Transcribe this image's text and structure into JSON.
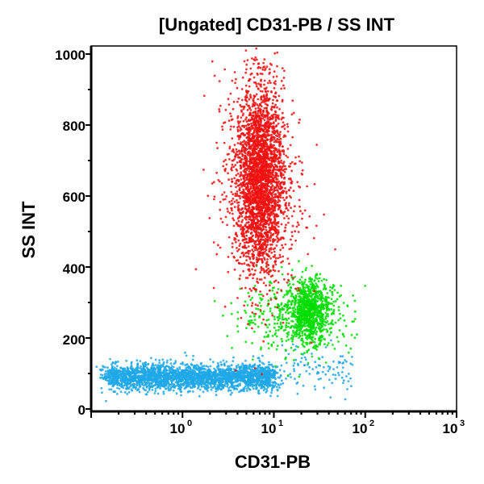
{
  "chart_data": {
    "type": "scatter",
    "title": "[Ungated] CD31-PB / SS INT",
    "xlabel": "CD31-PB",
    "ylabel": "SS INT",
    "xscale": "log",
    "xlim": [
      0.1,
      1000
    ],
    "ylim": [
      0,
      1020
    ],
    "x_ticks": [
      {
        "base": "10",
        "exp": "0",
        "value": 1
      },
      {
        "base": "10",
        "exp": "1",
        "value": 10
      },
      {
        "base": "10",
        "exp": "2",
        "value": 100
      },
      {
        "base": "10",
        "exp": "3",
        "value": 1000
      }
    ],
    "y_ticks": [
      {
        "label": "0",
        "value": 0
      },
      {
        "label": "200",
        "value": 200
      },
      {
        "label": "400",
        "value": 400
      },
      {
        "label": "600",
        "value": 600
      },
      {
        "label": "800",
        "value": 800
      },
      {
        "label": "1000",
        "value": 1000
      }
    ],
    "grid": false,
    "populations": [
      {
        "color": "#1ea8e8",
        "x_range": [
          0.15,
          10
        ],
        "y_center": 90,
        "y_spread": 18,
        "count": 2600
      },
      {
        "color": "#1ea8e8",
        "x_range": [
          8,
          70
        ],
        "y_center": 110,
        "y_spread": 30,
        "count": 120
      },
      {
        "color": "#00dd00",
        "x_center": 25,
        "x_spread_log": 0.1,
        "y_center": 280,
        "y_spread": 45,
        "count": 700
      },
      {
        "color": "#00dd00",
        "x_center": 18,
        "x_spread_log": 0.3,
        "y_center": 260,
        "y_spread": 50,
        "count": 500
      },
      {
        "color": "#f01010",
        "x_center": 7,
        "x_spread_log": 0.13,
        "y_center": 650,
        "y_spread": 130,
        "count": 2600
      },
      {
        "color": "#f01010",
        "x_center": 7,
        "x_spread_log": 0.25,
        "y_center": 620,
        "y_spread": 170,
        "count": 500
      }
    ]
  }
}
